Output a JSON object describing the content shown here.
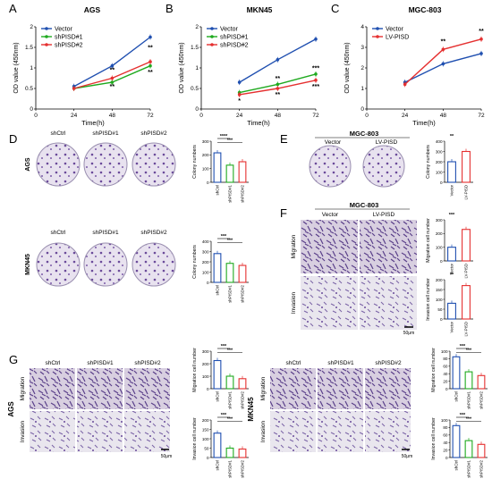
{
  "panels": {
    "A": {
      "letter": "A",
      "title": "AGS",
      "ylabel": "OD value (450nm)",
      "xlabel": "Time(h)",
      "legend": [
        "Vector",
        "shPISD#1",
        "shPISD#2"
      ],
      "sig": [
        "**",
        "**",
        "**",
        "**"
      ]
    },
    "B": {
      "letter": "B",
      "title": "MKN45",
      "ylabel": "OD value (450nm)",
      "xlabel": "Time(h)",
      "legend": [
        "Vector",
        "shPISD#1",
        "shPISD#2"
      ],
      "sig": [
        "*",
        "**",
        "**",
        "***",
        "***"
      ]
    },
    "C": {
      "letter": "C",
      "title": "MGC-803",
      "ylabel": "OD value (450nm)",
      "xlabel": "Time(h)",
      "legend": [
        "Vector",
        "LV-PISD"
      ],
      "sig": [
        "**",
        "**"
      ]
    },
    "D": {
      "letter": "D",
      "row_labels": [
        "AGS",
        "MKN45"
      ],
      "col_labels": [
        "shCtrl",
        "shPISD#1",
        "shPISD#2"
      ],
      "bar_ylabel": "Colony numbers",
      "bar_cats": [
        "shCtrl",
        "shPISD#1",
        "shPISD#2"
      ],
      "sig_top": [
        "****",
        "***"
      ],
      "sig_bottom": [
        "***",
        "***"
      ]
    },
    "E": {
      "letter": "E",
      "title": "MGC-803",
      "col_labels": [
        "Vector",
        "LV-PISD"
      ],
      "bar_ylabel": "Colony numbers",
      "bar_cats": [
        "Vector",
        "LV-PISD"
      ],
      "sig": "**"
    },
    "F": {
      "letter": "F",
      "title": "MGC-803",
      "col_labels": [
        "Vector",
        "LV-PISD"
      ],
      "row_labels": [
        "Migration",
        "Invasion"
      ],
      "bar_ylabels": [
        "Migration cell number",
        "Invasion cell number"
      ],
      "bar_cats": [
        "Vector",
        "LV-PISD"
      ],
      "sig": [
        "***",
        "**"
      ],
      "scale": "50μm"
    },
    "G": {
      "letter": "G",
      "left_title": "AGS",
      "right_title": "MKN45",
      "col_labels": [
        "shCtrl",
        "shPISD#1",
        "shPISD#2"
      ],
      "row_labels": [
        "Migration",
        "Invasion"
      ],
      "bar_ylabels": [
        "Migration cell number",
        "Invasion cell number"
      ],
      "bar_cats": [
        "shCtrl",
        "shPISD#1",
        "shPISD#2"
      ],
      "sig": [
        "***",
        "***"
      ],
      "scale": "50μm"
    }
  },
  "colors": {
    "blue": "#1f4fb0",
    "green": "#1faa1f",
    "red": "#e53030",
    "purple": "#6a4a9a"
  },
  "chart_data": [
    {
      "id": "A",
      "type": "line",
      "x": [
        0,
        24,
        48,
        72
      ],
      "xlim": [
        0,
        72
      ],
      "ylim": [
        0,
        2
      ],
      "yticks": [
        0,
        0.5,
        1,
        1.5,
        2
      ],
      "series": [
        {
          "name": "Vector",
          "color": "#1f4fb0",
          "x": [
            24,
            48,
            72
          ],
          "values": [
            0.55,
            1.05,
            1.75
          ]
        },
        {
          "name": "shPISD#1",
          "color": "#1faa1f",
          "x": [
            24,
            48,
            72
          ],
          "values": [
            0.5,
            0.65,
            1.05
          ]
        },
        {
          "name": "shPISD#2",
          "color": "#e53030",
          "x": [
            24,
            48,
            72
          ],
          "values": [
            0.5,
            0.75,
            1.15
          ]
        }
      ]
    },
    {
      "id": "B",
      "type": "line",
      "x": [
        0,
        24,
        48,
        72
      ],
      "xlim": [
        0,
        72
      ],
      "ylim": [
        0,
        2
      ],
      "yticks": [
        0,
        0.5,
        1,
        1.5,
        2
      ],
      "series": [
        {
          "name": "Vector",
          "color": "#1f4fb0",
          "x": [
            24,
            48,
            72
          ],
          "values": [
            0.65,
            1.2,
            1.7
          ]
        },
        {
          "name": "shPISD#1",
          "color": "#1faa1f",
          "x": [
            24,
            48,
            72
          ],
          "values": [
            0.4,
            0.6,
            0.85
          ]
        },
        {
          "name": "shPISD#2",
          "color": "#e53030",
          "x": [
            24,
            48,
            72
          ],
          "values": [
            0.35,
            0.5,
            0.7
          ]
        }
      ]
    },
    {
      "id": "C",
      "type": "line",
      "x": [
        0,
        24,
        48,
        72
      ],
      "xlim": [
        0,
        72
      ],
      "ylim": [
        0,
        4
      ],
      "yticks": [
        0,
        1,
        2,
        3,
        4
      ],
      "series": [
        {
          "name": "Vector",
          "color": "#1f4fb0",
          "x": [
            24,
            48,
            72
          ],
          "values": [
            1.3,
            2.2,
            2.7
          ]
        },
        {
          "name": "LV-PISD",
          "color": "#e53030",
          "x": [
            24,
            48,
            72
          ],
          "values": [
            1.2,
            2.9,
            3.4
          ]
        }
      ]
    },
    {
      "id": "D-AGS",
      "type": "bar",
      "categories": [
        "shCtrl",
        "shPISD#1",
        "shPISD#2"
      ],
      "values": [
        215,
        125,
        150
      ],
      "ylim": [
        0,
        300
      ],
      "yticks": [
        0,
        100,
        200,
        300
      ]
    },
    {
      "id": "D-MKN45",
      "type": "bar",
      "categories": [
        "shCtrl",
        "shPISD#1",
        "shPISD#2"
      ],
      "values": [
        280,
        185,
        165
      ],
      "ylim": [
        0,
        400
      ],
      "yticks": [
        0,
        100,
        200,
        300,
        400
      ]
    },
    {
      "id": "E",
      "type": "bar",
      "categories": [
        "Vector",
        "LV-PISD"
      ],
      "values": [
        200,
        300
      ],
      "ylim": [
        0,
        400
      ],
      "yticks": [
        0,
        100,
        200,
        300,
        400
      ]
    },
    {
      "id": "F-Mig",
      "type": "bar",
      "categories": [
        "Vector",
        "LV-PISD"
      ],
      "values": [
        100,
        230
      ],
      "ylim": [
        0,
        300
      ],
      "yticks": [
        0,
        100,
        200,
        300
      ]
    },
    {
      "id": "F-Inv",
      "type": "bar",
      "categories": [
        "Vector",
        "LV-PISD"
      ],
      "values": [
        80,
        170
      ],
      "ylim": [
        0,
        200
      ],
      "yticks": [
        0,
        50,
        100,
        150,
        200
      ]
    },
    {
      "id": "G-AGS-Mig",
      "type": "bar",
      "categories": [
        "shCtrl",
        "shPISD#1",
        "shPISD#2"
      ],
      "values": [
        225,
        100,
        80
      ],
      "ylim": [
        0,
        300
      ],
      "yticks": [
        0,
        100,
        200,
        300
      ]
    },
    {
      "id": "G-AGS-Inv",
      "type": "bar",
      "categories": [
        "shCtrl",
        "shPISD#1",
        "shPISD#2"
      ],
      "values": [
        130,
        50,
        45
      ],
      "ylim": [
        0,
        200
      ],
      "yticks": [
        0,
        50,
        100,
        150,
        200
      ]
    },
    {
      "id": "G-MKN45-Mig",
      "type": "bar",
      "categories": [
        "shCtrl",
        "shPISD#1",
        "shPISD#2"
      ],
      "values": [
        85,
        45,
        35
      ],
      "ylim": [
        0,
        100
      ],
      "yticks": [
        0,
        20,
        40,
        60,
        80,
        100
      ]
    },
    {
      "id": "G-MKN45-Inv",
      "type": "bar",
      "categories": [
        "shCtrl",
        "shPISD#1",
        "shPISD#2"
      ],
      "values": [
        85,
        45,
        35
      ],
      "ylim": [
        0,
        100
      ],
      "yticks": [
        0,
        20,
        40,
        60,
        80,
        100
      ]
    }
  ]
}
